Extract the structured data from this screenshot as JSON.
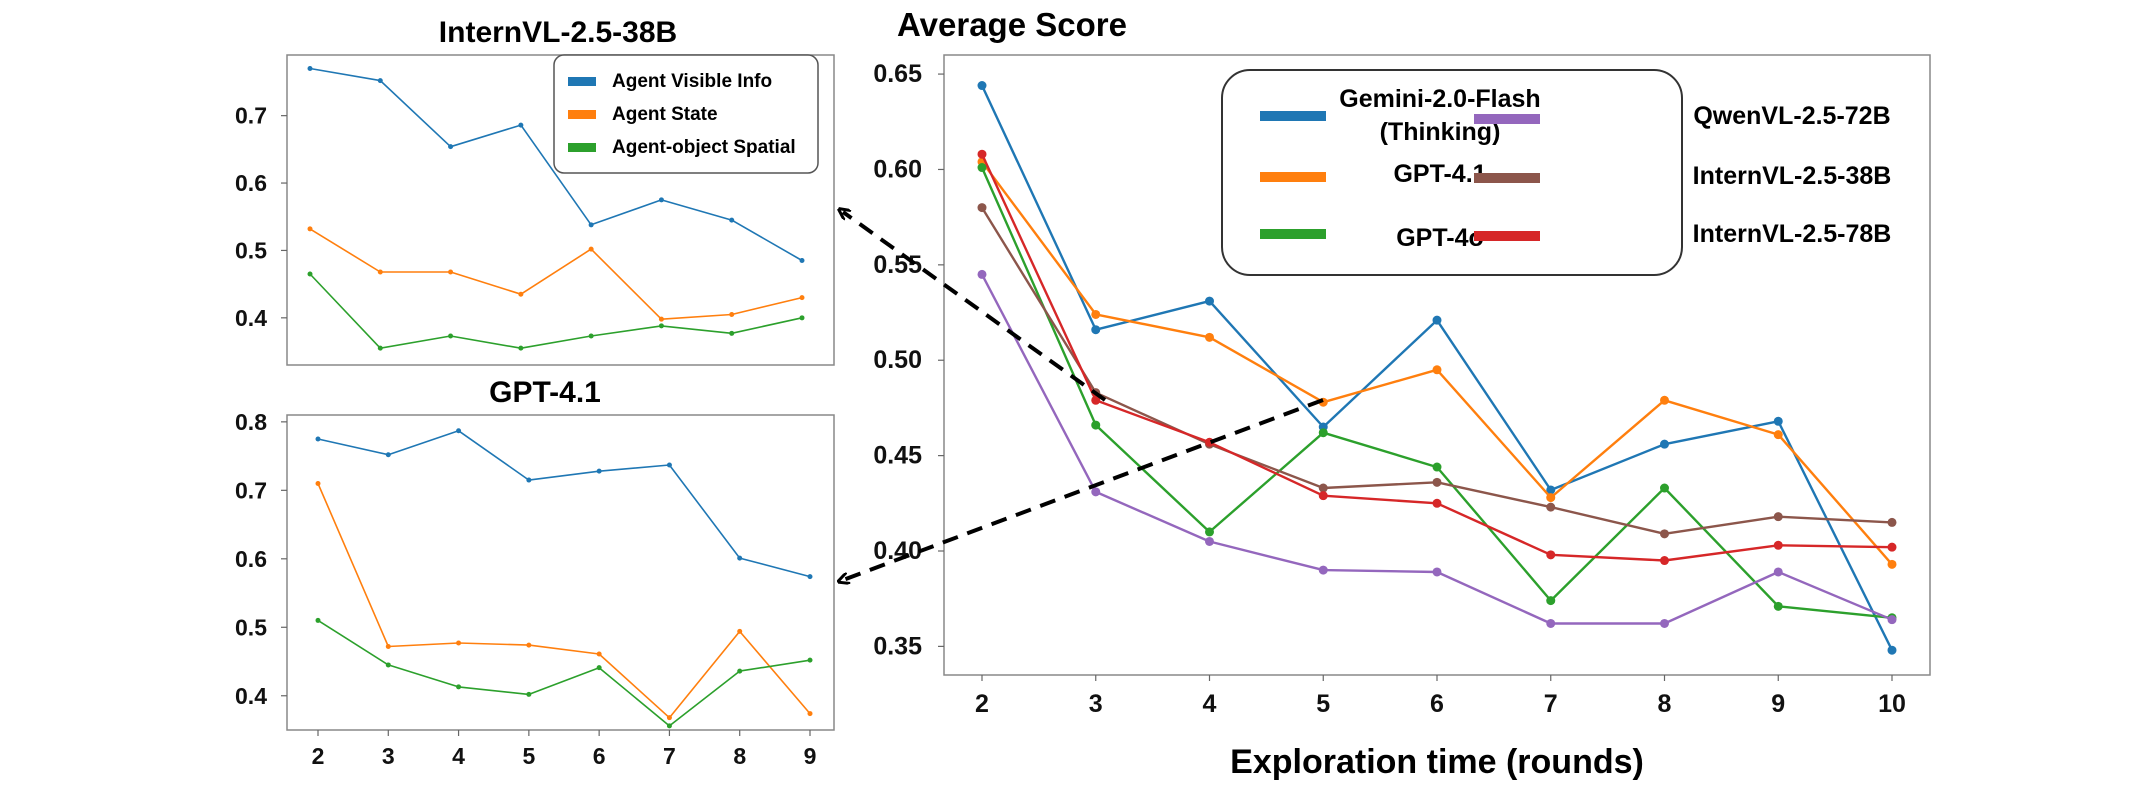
{
  "chart_data": [
    {
      "type": "line",
      "title": "InternVL-2.5-38B",
      "x": [
        2,
        3,
        4,
        5,
        6,
        7,
        8,
        9
      ],
      "ylim": [
        0.33,
        0.79
      ],
      "yticks": [
        "0.4",
        "0.5",
        "0.6",
        "0.7"
      ],
      "xticks": [],
      "grid": false,
      "legend_position": "top-right",
      "series": [
        {
          "name": "Agent Visible Info",
          "color": "#1f77b4",
          "values": [
            0.77,
            0.752,
            0.654,
            0.686,
            0.538,
            0.575,
            0.545,
            0.485
          ]
        },
        {
          "name": "Agent State",
          "color": "#ff7f0e",
          "values": [
            0.532,
            0.468,
            0.468,
            0.435,
            0.502,
            0.398,
            0.405,
            0.43
          ]
        },
        {
          "name": "Agent-object Spatial",
          "color": "#2ca02c",
          "values": [
            0.465,
            0.355,
            0.373,
            0.355,
            0.373,
            0.388,
            0.377,
            0.4
          ]
        }
      ]
    },
    {
      "type": "line",
      "title": "GPT-4.1",
      "x": [
        2,
        3,
        4,
        5,
        6,
        7,
        8,
        9
      ],
      "ylim": [
        0.35,
        0.81
      ],
      "yticks": [
        "0.4",
        "0.5",
        "0.6",
        "0.7",
        "0.8"
      ],
      "xticks": [
        "2",
        "3",
        "4",
        "5",
        "6",
        "7",
        "8",
        "9"
      ],
      "grid": false,
      "legend_position": "none",
      "series": [
        {
          "name": "Agent Visible Info",
          "color": "#1f77b4",
          "values": [
            0.775,
            0.752,
            0.787,
            0.715,
            0.728,
            0.737,
            0.601,
            0.574
          ]
        },
        {
          "name": "Agent State",
          "color": "#ff7f0e",
          "values": [
            0.71,
            0.472,
            0.477,
            0.474,
            0.461,
            0.368,
            0.494,
            0.374
          ]
        },
        {
          "name": "Agent-object Spatial",
          "color": "#2ca02c",
          "values": [
            0.51,
            0.445,
            0.413,
            0.402,
            0.441,
            0.356,
            0.436,
            0.452
          ]
        }
      ]
    },
    {
      "type": "line",
      "title": "Average Score",
      "xlabel": "Exploration time (rounds)",
      "ylabel": "",
      "x": [
        2,
        3,
        4,
        5,
        6,
        7,
        8,
        9,
        10
      ],
      "ylim": [
        0.335,
        0.66
      ],
      "yticks": [
        "0.35",
        "0.40",
        "0.45",
        "0.50",
        "0.55",
        "0.60",
        "0.65"
      ],
      "xticks": [
        "2",
        "3",
        "4",
        "5",
        "6",
        "7",
        "8",
        "9",
        "10"
      ],
      "grid": false,
      "legend_position": "top-right",
      "series": [
        {
          "name": "Gemini-2.0-Flash\n(Thinking)",
          "color": "#1f77b4",
          "values": [
            0.644,
            0.516,
            0.531,
            0.465,
            0.521,
            0.432,
            0.456,
            0.468,
            0.348
          ]
        },
        {
          "name": "GPT-4.1",
          "color": "#ff7f0e",
          "values": [
            0.604,
            0.524,
            0.512,
            0.478,
            0.495,
            0.428,
            0.479,
            0.461,
            0.393
          ]
        },
        {
          "name": "GPT-4o",
          "color": "#2ca02c",
          "values": [
            0.601,
            0.466,
            0.41,
            0.462,
            0.444,
            0.374,
            0.433,
            0.371,
            0.365
          ]
        },
        {
          "name": "QwenVL-2.5-72B",
          "color": "#9467bd",
          "values": [
            0.545,
            0.431,
            0.405,
            0.39,
            0.389,
            0.362,
            0.362,
            0.389,
            0.364
          ]
        },
        {
          "name": "InternVL-2.5-38B",
          "color": "#8c564b",
          "values": [
            0.58,
            0.483,
            0.456,
            0.433,
            0.436,
            0.423,
            0.409,
            0.418,
            0.415
          ]
        },
        {
          "name": "InternVL-2.5-78B",
          "color": "#d62728",
          "values": [
            0.608,
            0.479,
            0.457,
            0.429,
            0.425,
            0.398,
            0.395,
            0.403,
            0.402
          ]
        }
      ]
    }
  ]
}
